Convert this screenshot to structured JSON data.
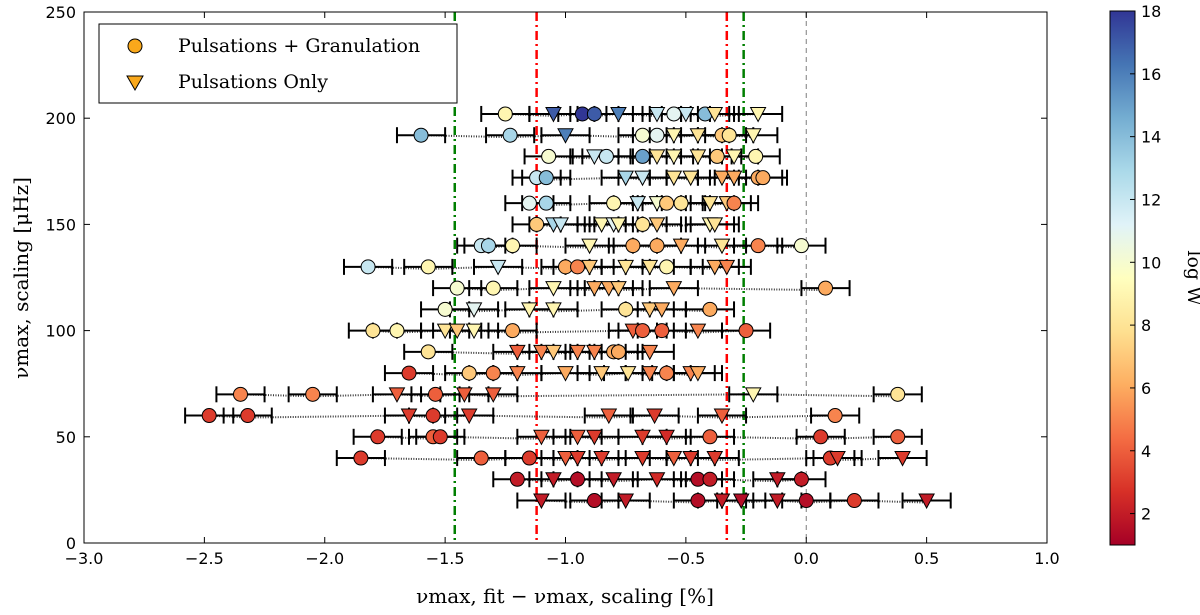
{
  "chart_data": {
    "type": "scatter",
    "title": "",
    "xlabel": "νmax, fit − νmax, scaling [%]",
    "ylabel": "νmax, scaling [μHz]",
    "xlim": [
      -3.0,
      1.0
    ],
    "ylim": [
      0,
      250
    ],
    "xticks": [
      -3.0,
      -2.5,
      -2.0,
      -1.5,
      -1.0,
      -0.5,
      0.0,
      0.5,
      1.0
    ],
    "xtick_labels": [
      "−3.0",
      "−2.5",
      "−2.0",
      "−1.5",
      "−1.0",
      "−0.5",
      "0.0",
      "0.5",
      "1.0"
    ],
    "yticks": [
      0,
      50,
      100,
      150,
      200,
      250
    ],
    "ytick_labels": [
      "0",
      "50",
      "100",
      "150",
      "200",
      "250"
    ],
    "legend": {
      "position": "top-left",
      "entries": [
        {
          "label": "Pulsations + Granulation",
          "marker": "circle",
          "color": "#f9a81b"
        },
        {
          "label": "Pulsations Only",
          "marker": "triangle-down",
          "color": "#f9a81b"
        }
      ]
    },
    "colorbar": {
      "label": "log W",
      "min": 1,
      "max": 18,
      "ticks": [
        2,
        4,
        6,
        8,
        10,
        12,
        14,
        16,
        18
      ],
      "tick_labels": [
        "2",
        "4",
        "6",
        "8",
        "10",
        "12",
        "14",
        "16",
        "18"
      ],
      "colormap": "RdYlBu"
    },
    "reference_lines": [
      {
        "name": "zero-line",
        "x": 0.0,
        "color": "#7f7f7f",
        "style": "dashed"
      },
      {
        "name": "red-left",
        "x": -1.12,
        "color": "#ff0000",
        "style": "dashdot"
      },
      {
        "name": "red-right",
        "x": -0.33,
        "color": "#ff0000",
        "style": "dashdot"
      },
      {
        "name": "green-left",
        "x": -1.46,
        "color": "#007f00",
        "style": "dashdot"
      },
      {
        "name": "green-right",
        "x": -0.26,
        "color": "#007f00",
        "style": "dashdot"
      }
    ],
    "error_bar_halfwidth": 0.1,
    "rows": [
      {
        "y": 20,
        "points": [
          [
            -1.1,
            2,
            "t"
          ],
          [
            -0.88,
            1.5,
            "c"
          ],
          [
            -0.75,
            2,
            "t"
          ],
          [
            -0.45,
            1.5,
            "c"
          ],
          [
            -0.35,
            2,
            "t"
          ],
          [
            -0.27,
            1.5,
            "t"
          ],
          [
            -0.12,
            2,
            "t"
          ],
          [
            0.0,
            1.5,
            "c"
          ],
          [
            0.2,
            3,
            "c"
          ],
          [
            0.5,
            2,
            "t"
          ]
        ]
      },
      {
        "y": 30,
        "points": [
          [
            -1.2,
            2,
            "c"
          ],
          [
            -1.05,
            2,
            "t"
          ],
          [
            -0.95,
            1.5,
            "c"
          ],
          [
            -0.8,
            2,
            "t"
          ],
          [
            -0.62,
            2.5,
            "t"
          ],
          [
            -0.45,
            1.5,
            "c"
          ],
          [
            -0.4,
            2,
            "c"
          ],
          [
            -0.12,
            2,
            "t"
          ],
          [
            -0.02,
            2,
            "c"
          ]
        ]
      },
      {
        "y": 40,
        "points": [
          [
            -1.85,
            3,
            "c"
          ],
          [
            -1.35,
            4,
            "c"
          ],
          [
            -1.15,
            3,
            "c"
          ],
          [
            -1.0,
            4,
            "t"
          ],
          [
            -0.95,
            3,
            "t"
          ],
          [
            -0.85,
            3,
            "t"
          ],
          [
            -0.68,
            3,
            "t"
          ],
          [
            -0.55,
            4,
            "t"
          ],
          [
            -0.48,
            3,
            "t"
          ],
          [
            -0.38,
            3,
            "t"
          ],
          [
            0.1,
            3,
            "c"
          ],
          [
            0.13,
            3,
            "t"
          ],
          [
            0.4,
            3,
            "t"
          ]
        ]
      },
      {
        "y": 50,
        "points": [
          [
            -1.78,
            3,
            "c"
          ],
          [
            -1.55,
            4,
            "c"
          ],
          [
            -1.52,
            3,
            "c"
          ],
          [
            -1.1,
            4,
            "t"
          ],
          [
            -0.95,
            4,
            "t"
          ],
          [
            -0.88,
            3,
            "t"
          ],
          [
            -0.68,
            3,
            "t"
          ],
          [
            -0.58,
            2.5,
            "t"
          ],
          [
            -0.4,
            4,
            "c"
          ],
          [
            0.06,
            3,
            "c"
          ],
          [
            0.38,
            4,
            "c"
          ]
        ]
      },
      {
        "y": 60,
        "points": [
          [
            -2.48,
            3,
            "c"
          ],
          [
            -2.32,
            3,
            "c"
          ],
          [
            -1.65,
            3,
            "t"
          ],
          [
            -1.55,
            3,
            "c"
          ],
          [
            -1.4,
            3,
            "t"
          ],
          [
            -0.82,
            4,
            "t"
          ],
          [
            -0.63,
            3,
            "t"
          ],
          [
            -0.35,
            4,
            "t"
          ],
          [
            0.12,
            5,
            "c"
          ]
        ]
      },
      {
        "y": 70,
        "points": [
          [
            -2.35,
            5,
            "c"
          ],
          [
            -2.05,
            5,
            "c"
          ],
          [
            -1.7,
            4,
            "t"
          ],
          [
            -1.54,
            4,
            "c"
          ],
          [
            -1.42,
            4,
            "t"
          ],
          [
            -1.3,
            4,
            "t"
          ],
          [
            -0.22,
            9,
            "t"
          ],
          [
            0.38,
            8,
            "c"
          ]
        ]
      },
      {
        "y": 80,
        "points": [
          [
            -1.65,
            3,
            "c"
          ],
          [
            -1.4,
            7,
            "c"
          ],
          [
            -1.3,
            5,
            "c"
          ],
          [
            -1.2,
            5,
            "t"
          ],
          [
            -1.0,
            6,
            "t"
          ],
          [
            -0.85,
            7,
            "t"
          ],
          [
            -0.74,
            8,
            "t"
          ],
          [
            -0.65,
            5,
            "t"
          ],
          [
            -0.58,
            5,
            "c"
          ],
          [
            -0.48,
            5,
            "t"
          ],
          [
            -0.45,
            6,
            "t"
          ]
        ]
      },
      {
        "y": 90,
        "points": [
          [
            -1.57,
            8,
            "c"
          ],
          [
            -1.2,
            4,
            "t"
          ],
          [
            -1.1,
            5,
            "t"
          ],
          [
            -1.05,
            7,
            "t"
          ],
          [
            -0.95,
            5,
            "t"
          ],
          [
            -0.88,
            5,
            "t"
          ],
          [
            -0.8,
            6,
            "c"
          ],
          [
            -0.78,
            6,
            "c"
          ],
          [
            -0.65,
            5,
            "t"
          ]
        ]
      },
      {
        "y": 100,
        "points": [
          [
            -1.8,
            8,
            "c"
          ],
          [
            -1.7,
            9,
            "c"
          ],
          [
            -1.5,
            8,
            "t"
          ],
          [
            -1.45,
            7,
            "t"
          ],
          [
            -1.38,
            9,
            "t"
          ],
          [
            -1.22,
            6,
            "c"
          ],
          [
            -0.72,
            4,
            "t"
          ],
          [
            -0.68,
            4,
            "c"
          ],
          [
            -0.6,
            4,
            "c"
          ],
          [
            -0.45,
            5,
            "t"
          ],
          [
            -0.25,
            4,
            "c"
          ]
        ]
      },
      {
        "y": 110,
        "points": [
          [
            -1.5,
            10,
            "c"
          ],
          [
            -1.38,
            11,
            "t"
          ],
          [
            -1.15,
            9,
            "t"
          ],
          [
            -1.05,
            9,
            "t"
          ],
          [
            -0.75,
            8,
            "c"
          ],
          [
            -0.65,
            7,
            "t"
          ],
          [
            -0.6,
            6,
            "t"
          ],
          [
            -0.4,
            6,
            "c"
          ]
        ]
      },
      {
        "y": 120,
        "points": [
          [
            -1.45,
            10,
            "c"
          ],
          [
            -1.3,
            9,
            "c"
          ],
          [
            -1.05,
            9,
            "t"
          ],
          [
            -0.88,
            6,
            "t"
          ],
          [
            -0.82,
            6,
            "t"
          ],
          [
            -0.78,
            7,
            "t"
          ],
          [
            -0.55,
            6,
            "t"
          ],
          [
            0.08,
            6,
            "c"
          ]
        ]
      },
      {
        "y": 130,
        "points": [
          [
            -1.82,
            12,
            "c"
          ],
          [
            -1.57,
            9,
            "c"
          ],
          [
            -1.28,
            12,
            "t"
          ],
          [
            -1.0,
            6,
            "c"
          ],
          [
            -0.95,
            5,
            "c"
          ],
          [
            -0.9,
            7,
            "t"
          ],
          [
            -0.75,
            8,
            "t"
          ],
          [
            -0.65,
            8,
            "t"
          ],
          [
            -0.58,
            9,
            "c"
          ],
          [
            -0.38,
            6,
            "t"
          ],
          [
            -0.33,
            5,
            "t"
          ]
        ]
      },
      {
        "y": 140,
        "points": [
          [
            -1.35,
            12,
            "c"
          ],
          [
            -1.32,
            13,
            "c"
          ],
          [
            -1.22,
            9,
            "c"
          ],
          [
            -0.9,
            9,
            "t"
          ],
          [
            -0.72,
            6,
            "c"
          ],
          [
            -0.62,
            6,
            "c"
          ],
          [
            -0.52,
            6,
            "t"
          ],
          [
            -0.35,
            8,
            "t"
          ],
          [
            -0.2,
            5,
            "c"
          ],
          [
            -0.02,
            10,
            "c"
          ]
        ]
      },
      {
        "y": 150,
        "points": [
          [
            -1.12,
            7,
            "c"
          ],
          [
            -1.05,
            13,
            "t"
          ],
          [
            -1.02,
            12,
            "t"
          ],
          [
            -0.85,
            9,
            "t"
          ],
          [
            -0.8,
            11,
            "t"
          ],
          [
            -0.78,
            9,
            "t"
          ],
          [
            -0.68,
            8,
            "c"
          ],
          [
            -0.62,
            7,
            "t"
          ],
          [
            -0.4,
            9,
            "t"
          ],
          [
            -0.38,
            8,
            "t"
          ]
        ]
      },
      {
        "y": 160,
        "points": [
          [
            -1.15,
            11,
            "c"
          ],
          [
            -1.08,
            13,
            "c"
          ],
          [
            -0.8,
            9,
            "c"
          ],
          [
            -0.7,
            12,
            "t"
          ],
          [
            -0.62,
            10,
            "t"
          ],
          [
            -0.58,
            7,
            "c"
          ],
          [
            -0.52,
            8,
            "c"
          ],
          [
            -0.4,
            8,
            "t"
          ],
          [
            -0.33,
            7,
            "t"
          ],
          [
            -0.3,
            5,
            "c"
          ]
        ]
      },
      {
        "y": 172,
        "points": [
          [
            -1.12,
            12,
            "c"
          ],
          [
            -1.08,
            14,
            "c"
          ],
          [
            -0.75,
            13,
            "t"
          ],
          [
            -0.68,
            12,
            "t"
          ],
          [
            -0.55,
            8,
            "t"
          ],
          [
            -0.48,
            8,
            "t"
          ],
          [
            -0.35,
            6,
            "t"
          ],
          [
            -0.3,
            6,
            "t"
          ],
          [
            -0.2,
            6,
            "c"
          ],
          [
            -0.18,
            6,
            "c"
          ]
        ]
      },
      {
        "y": 182,
        "points": [
          [
            -1.07,
            10,
            "c"
          ],
          [
            -0.88,
            12,
            "t"
          ],
          [
            -0.83,
            12,
            "c"
          ],
          [
            -0.68,
            15,
            "c"
          ],
          [
            -0.62,
            8,
            "t"
          ],
          [
            -0.55,
            9,
            "t"
          ],
          [
            -0.45,
            8,
            "t"
          ],
          [
            -0.37,
            7,
            "c"
          ],
          [
            -0.3,
            9,
            "t"
          ],
          [
            -0.21,
            9,
            "c"
          ]
        ]
      },
      {
        "y": 192,
        "points": [
          [
            -1.6,
            14,
            "c"
          ],
          [
            -1.23,
            13,
            "c"
          ],
          [
            -1.0,
            16,
            "t"
          ],
          [
            -0.68,
            10,
            "c"
          ],
          [
            -0.62,
            11,
            "c"
          ],
          [
            -0.55,
            9,
            "t"
          ],
          [
            -0.45,
            8,
            "t"
          ],
          [
            -0.35,
            7,
            "c"
          ],
          [
            -0.32,
            8,
            "c"
          ],
          [
            -0.22,
            9,
            "t"
          ]
        ]
      },
      {
        "y": 202,
        "points": [
          [
            -1.25,
            9,
            "c"
          ],
          [
            -1.05,
            17,
            "t"
          ],
          [
            -0.93,
            18,
            "c"
          ],
          [
            -0.88,
            17,
            "c"
          ],
          [
            -0.78,
            16,
            "t"
          ],
          [
            -0.62,
            12,
            "t"
          ],
          [
            -0.55,
            11,
            "c"
          ],
          [
            -0.5,
            12,
            "t"
          ],
          [
            -0.42,
            14,
            "c"
          ],
          [
            -0.38,
            8,
            "t"
          ],
          [
            -0.2,
            9,
            "t"
          ]
        ]
      }
    ]
  }
}
